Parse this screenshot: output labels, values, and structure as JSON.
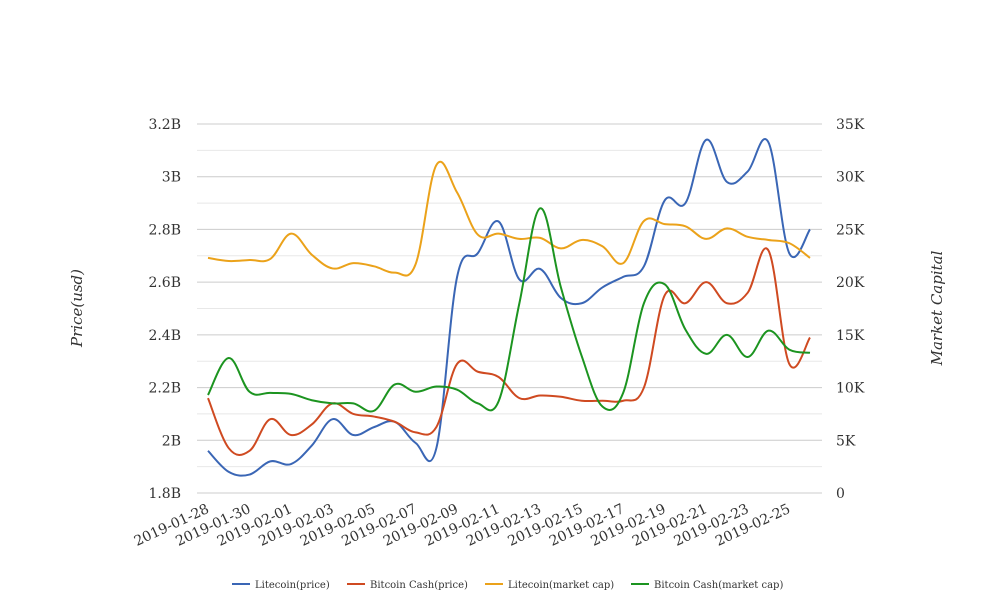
{
  "chart_data": {
    "type": "line",
    "xlabel": "",
    "ylabel_left": "Price(usd)",
    "ylabel_right": "Market Capital",
    "x_tick_labels": [
      "2019-01-28",
      "2019-01-30",
      "2019-02-01",
      "2019-02-03",
      "2019-02-05",
      "2019-02-07",
      "2019-02-09",
      "2019-02-11",
      "2019-02-13",
      "2019-02-15",
      "2019-02-17",
      "2019-02-19",
      "2019-02-21",
      "2019-02-23",
      "2019-02-25"
    ],
    "x": [
      "2019-01-28",
      "2019-01-29",
      "2019-01-30",
      "2019-01-31",
      "2019-02-01",
      "2019-02-02",
      "2019-02-03",
      "2019-02-04",
      "2019-02-05",
      "2019-02-06",
      "2019-02-07",
      "2019-02-08",
      "2019-02-09",
      "2019-02-10",
      "2019-02-11",
      "2019-02-12",
      "2019-02-13",
      "2019-02-14",
      "2019-02-15",
      "2019-02-16",
      "2019-02-17",
      "2019-02-18",
      "2019-02-19",
      "2019-02-20",
      "2019-02-21",
      "2019-02-22",
      "2019-02-23",
      "2019-02-24",
      "2019-02-25",
      "2019-02-26"
    ],
    "y_left": {
      "ticks": [
        "1.8B",
        "2B",
        "2.2B",
        "2.4B",
        "2.6B",
        "2.8B",
        "3B",
        "3.2B"
      ],
      "min": 1.8,
      "max": 3.2,
      "unit": "B"
    },
    "y_right": {
      "ticks": [
        "0",
        "5K",
        "10K",
        "15K",
        "20K",
        "25K",
        "30K",
        "35K"
      ],
      "min": 0,
      "max": 35,
      "unit": "K"
    },
    "grid": true,
    "legend_position": "bottom",
    "series": [
      {
        "name": "Litecoin(price)",
        "axis": "left",
        "color": "#3a66b5",
        "values": [
          1.96,
          1.88,
          1.87,
          1.92,
          1.91,
          1.98,
          2.08,
          2.02,
          2.05,
          2.07,
          1.99,
          1.97,
          2.62,
          2.71,
          2.83,
          2.61,
          2.65,
          2.54,
          2.52,
          2.58,
          2.62,
          2.66,
          2.91,
          2.9,
          3.14,
          2.98,
          3.02,
          3.13,
          2.71,
          2.8
        ]
      },
      {
        "name": "Bitcoin Cash(price)",
        "axis": "left",
        "color": "#cf4a21",
        "values": [
          2.16,
          1.97,
          1.96,
          2.08,
          2.02,
          2.06,
          2.14,
          2.1,
          2.09,
          2.07,
          2.03,
          2.05,
          2.29,
          2.26,
          2.24,
          2.16,
          2.17,
          2.165,
          2.15,
          2.15,
          2.15,
          2.2,
          2.55,
          2.52,
          2.6,
          2.52,
          2.56,
          2.72,
          2.29,
          2.39
        ]
      },
      {
        "name": "Litecoin(market cap)",
        "axis": "right",
        "color": "#eba21a",
        "values": [
          22.3,
          22.0,
          22.1,
          22.2,
          24.6,
          22.6,
          21.3,
          21.8,
          21.5,
          20.9,
          21.7,
          31.1,
          28.5,
          24.5,
          24.6,
          24.1,
          24.2,
          23.2,
          24.0,
          23.4,
          21.8,
          25.8,
          25.5,
          25.3,
          24.1,
          25.1,
          24.3,
          24.0,
          23.7,
          22.3
        ]
      },
      {
        "name": "Bitcoin Cash(market cap)",
        "axis": "right",
        "color": "#1c9420",
        "values": [
          9.3,
          12.8,
          9.6,
          9.5,
          9.4,
          8.8,
          8.5,
          8.5,
          7.8,
          10.3,
          9.6,
          10.1,
          9.8,
          8.5,
          8.7,
          18.0,
          27.0,
          19.5,
          13.0,
          8.2,
          9.5,
          18.0,
          19.8,
          15.5,
          13.2,
          15.0,
          12.9,
          15.4,
          13.6,
          13.3
        ]
      }
    ]
  }
}
